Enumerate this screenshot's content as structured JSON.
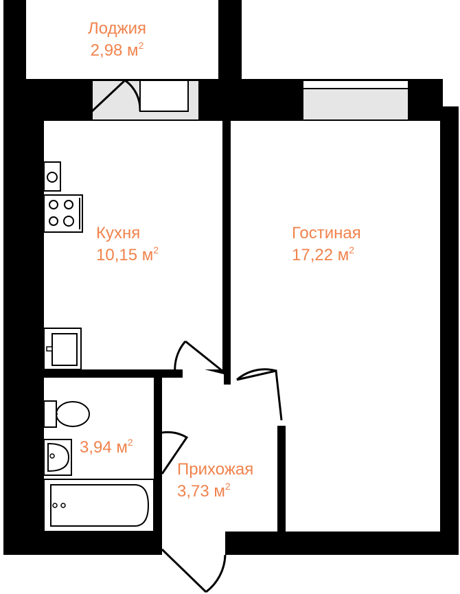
{
  "colors": {
    "wall": "#000000",
    "floor": "#ffffff",
    "fixture_fill": "#f2f2f2",
    "window_fill": "#e6e6e6",
    "label": "#f0834d"
  },
  "rooms": {
    "loggia": {
      "name": "Лоджия",
      "area": "2,98 м",
      "sup": "2"
    },
    "kitchen": {
      "name": "Кухня",
      "area": "10,15 м",
      "sup": "2"
    },
    "living": {
      "name": "Гостиная",
      "area": "17,22 м",
      "sup": "2"
    },
    "bathroom": {
      "name": "",
      "area": "3,94 м",
      "sup": "2"
    },
    "hallway": {
      "name": "Прихожая",
      "area": "3,73 м",
      "sup": "2"
    }
  },
  "fixtures": [
    "stove-icon",
    "sink-icon",
    "toilet-icon",
    "washbasin-icon",
    "bathtub-icon"
  ]
}
